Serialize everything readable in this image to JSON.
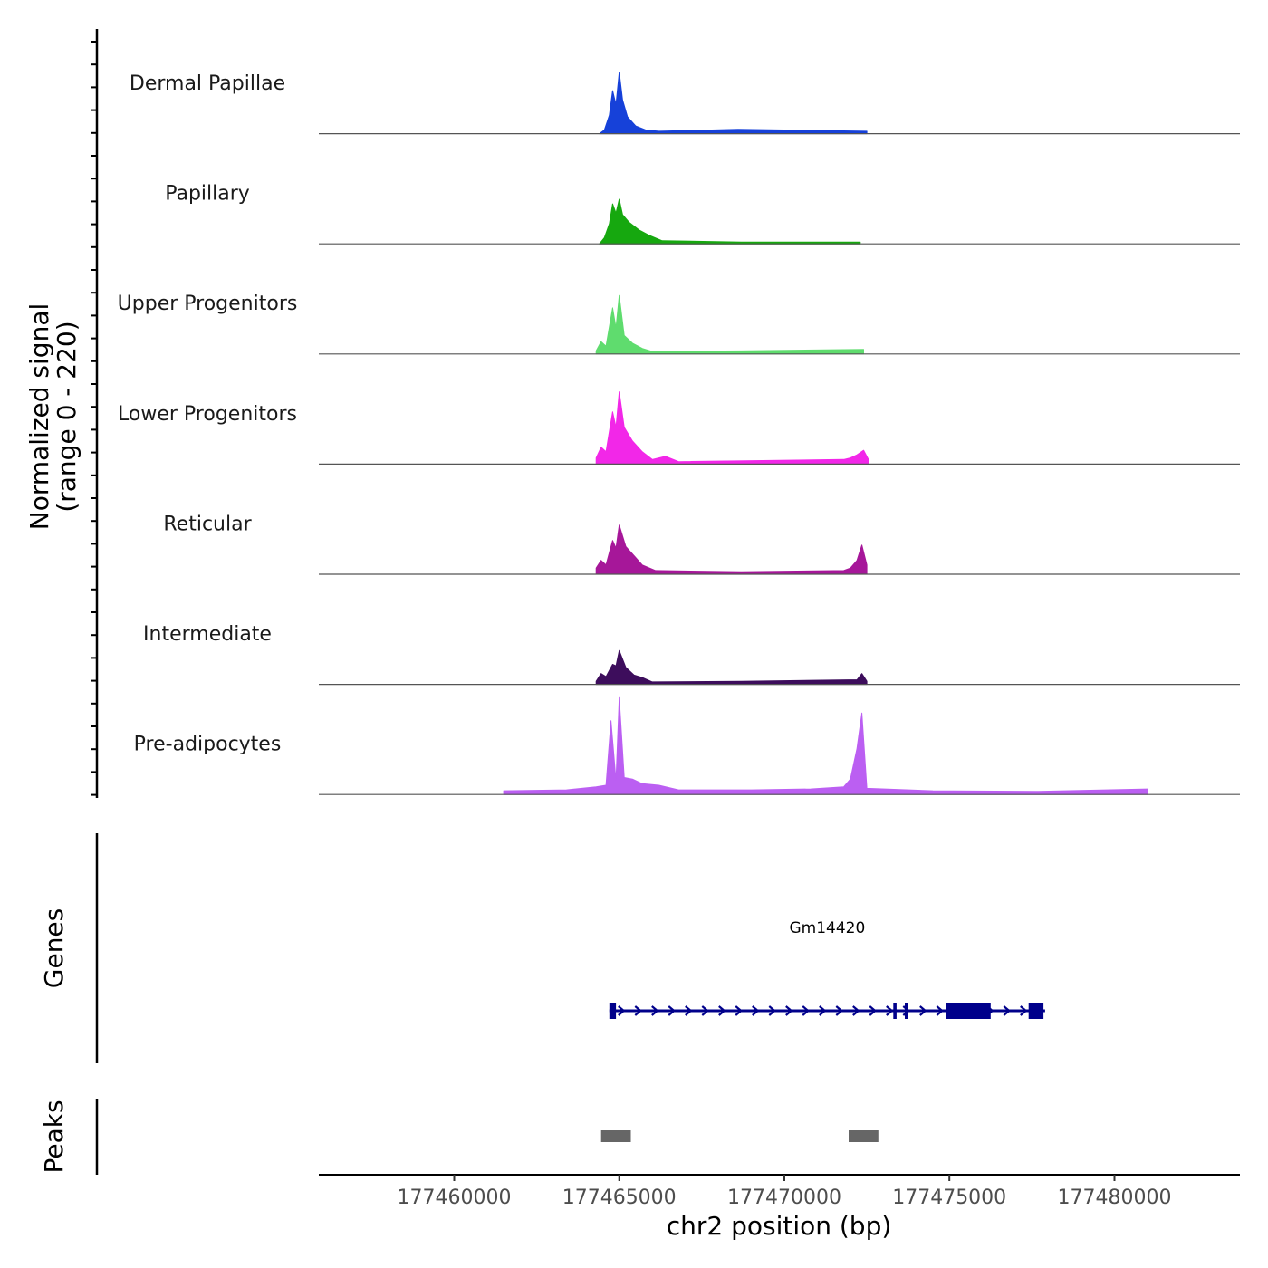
{
  "chart_data": {
    "type": "area",
    "chromosome": "chr2",
    "xlabel": "chr2 position (bp)",
    "xlim": [
      177455900,
      177483800
    ],
    "x_ticks": [
      177460000,
      177465000,
      177470000,
      177475000,
      177480000
    ],
    "x_tick_labels": [
      "177460000",
      "177465000",
      "177470000",
      "177475000",
      "177480000"
    ],
    "coverage_ylabel_line1": "Normalized signal",
    "coverage_ylabel_line2": "(range 0 - 220)",
    "ylim": [
      0,
      220
    ],
    "genes_label": "Genes",
    "peaks_label": "Peaks",
    "series": [
      {
        "name": "Dermal Papillae",
        "color": "#1641d9",
        "points": [
          [
            177464400,
            0
          ],
          [
            177464550,
            12
          ],
          [
            177464700,
            60
          ],
          [
            177464800,
            140
          ],
          [
            177464900,
            95
          ],
          [
            177465000,
            200
          ],
          [
            177465100,
            110
          ],
          [
            177465250,
            55
          ],
          [
            177465500,
            25
          ],
          [
            177465800,
            12
          ],
          [
            177466200,
            8
          ],
          [
            177468600,
            14
          ],
          [
            177472500,
            8
          ]
        ]
      },
      {
        "name": "Papillary",
        "color": "#16a80f",
        "points": [
          [
            177464400,
            0
          ],
          [
            177464550,
            20
          ],
          [
            177464700,
            65
          ],
          [
            177464800,
            130
          ],
          [
            177464900,
            100
          ],
          [
            177465000,
            145
          ],
          [
            177465100,
            95
          ],
          [
            177465300,
            70
          ],
          [
            177465600,
            45
          ],
          [
            177465900,
            28
          ],
          [
            177466300,
            10
          ],
          [
            177468700,
            6
          ],
          [
            177472300,
            6
          ]
        ]
      },
      {
        "name": "Upper Progenitors",
        "color": "#5fdc6e",
        "points": [
          [
            177464300,
            10
          ],
          [
            177464450,
            40
          ],
          [
            177464600,
            25
          ],
          [
            177464800,
            150
          ],
          [
            177464900,
            85
          ],
          [
            177465000,
            190
          ],
          [
            177465150,
            60
          ],
          [
            177465400,
            35
          ],
          [
            177465700,
            18
          ],
          [
            177466000,
            8
          ],
          [
            177468700,
            10
          ],
          [
            177472400,
            15
          ]
        ]
      },
      {
        "name": "Lower Progenitors",
        "color": "#f227e8",
        "points": [
          [
            177464300,
            20
          ],
          [
            177464450,
            55
          ],
          [
            177464600,
            40
          ],
          [
            177464800,
            170
          ],
          [
            177464900,
            120
          ],
          [
            177465000,
            235
          ],
          [
            177465150,
            120
          ],
          [
            177465400,
            75
          ],
          [
            177465700,
            40
          ],
          [
            177466000,
            15
          ],
          [
            177466400,
            25
          ],
          [
            177466800,
            8
          ],
          [
            177471800,
            15
          ],
          [
            177472000,
            20
          ],
          [
            177472200,
            30
          ],
          [
            177472400,
            45
          ],
          [
            177472550,
            15
          ]
        ]
      },
      {
        "name": "Reticular",
        "color": "#a61799",
        "points": [
          [
            177464300,
            20
          ],
          [
            177464450,
            45
          ],
          [
            177464600,
            30
          ],
          [
            177464800,
            110
          ],
          [
            177464900,
            85
          ],
          [
            177465000,
            160
          ],
          [
            177465200,
            90
          ],
          [
            177465450,
            60
          ],
          [
            177465700,
            30
          ],
          [
            177466100,
            12
          ],
          [
            177468700,
            8
          ],
          [
            177471800,
            12
          ],
          [
            177472000,
            20
          ],
          [
            177472200,
            45
          ],
          [
            177472350,
            95
          ],
          [
            177472500,
            30
          ]
        ]
      },
      {
        "name": "Intermediate",
        "color": "#3d0d5c",
        "points": [
          [
            177464300,
            10
          ],
          [
            177464450,
            35
          ],
          [
            177464600,
            25
          ],
          [
            177464800,
            65
          ],
          [
            177464900,
            60
          ],
          [
            177465000,
            110
          ],
          [
            177465200,
            55
          ],
          [
            177465450,
            30
          ],
          [
            177465700,
            22
          ],
          [
            177466000,
            8
          ],
          [
            177468700,
            10
          ],
          [
            177472200,
            15
          ],
          [
            177472350,
            35
          ],
          [
            177472500,
            10
          ]
        ]
      },
      {
        "name": "Pre-adipocytes",
        "color": "#bb5ff2",
        "points": [
          [
            177461500,
            12
          ],
          [
            177463400,
            15
          ],
          [
            177464300,
            25
          ],
          [
            177464600,
            30
          ],
          [
            177464750,
            240
          ],
          [
            177464900,
            45
          ],
          [
            177465000,
            315
          ],
          [
            177465150,
            55
          ],
          [
            177465400,
            50
          ],
          [
            177465700,
            35
          ],
          [
            177466200,
            30
          ],
          [
            177466800,
            15
          ],
          [
            177469000,
            15
          ],
          [
            177470800,
            18
          ],
          [
            177471800,
            25
          ],
          [
            177472000,
            50
          ],
          [
            177472200,
            150
          ],
          [
            177472350,
            265
          ],
          [
            177472500,
            20
          ],
          [
            177474500,
            12
          ],
          [
            177477700,
            10
          ],
          [
            177481000,
            18
          ]
        ]
      }
    ],
    "genes": [
      {
        "name": "Gm14420",
        "start": 177464700,
        "end": 177477900,
        "exons": [
          [
            177464700,
            177464900
          ],
          [
            177473300,
            177473400
          ],
          [
            177473650,
            177473700
          ],
          [
            177474900,
            177476250
          ],
          [
            177477400,
            177477850
          ]
        ],
        "strand": "+"
      }
    ],
    "peaks": [
      {
        "start": 177464450,
        "end": 177465350
      },
      {
        "start": 177471950,
        "end": 177472850
      }
    ]
  }
}
